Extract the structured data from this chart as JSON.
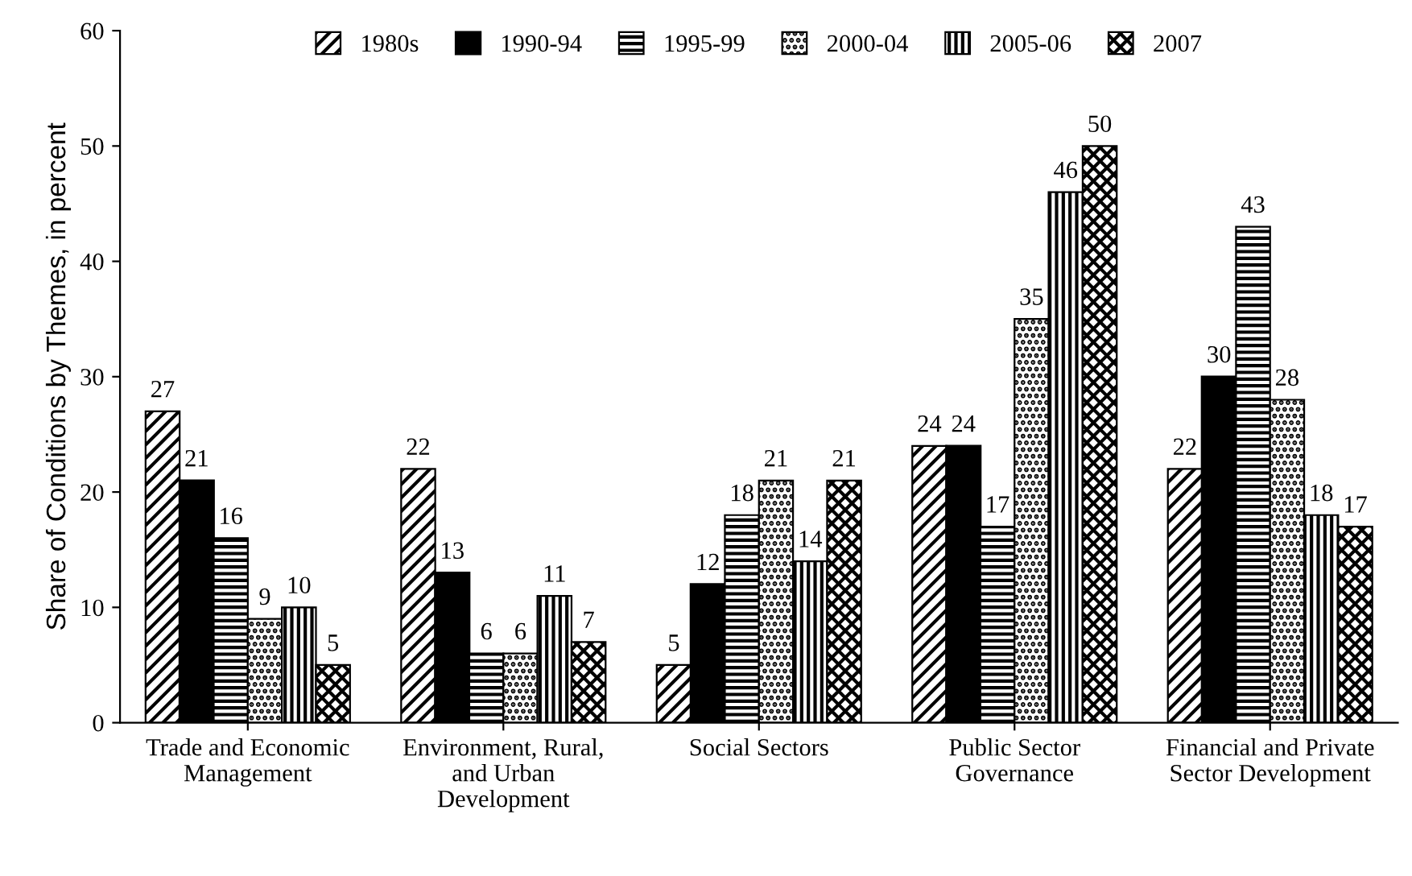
{
  "chart_data": {
    "type": "bar",
    "ylabel": "Share of Conditions by Themes, in percent",
    "categories": [
      "Trade and Economic\nManagement",
      "Environment, Rural,\nand Urban\nDevelopment",
      "Social Sectors",
      "Public Sector\nGovernance",
      "Financial and Private\nSector Development"
    ],
    "series": [
      {
        "name": "1980s",
        "color": "#000000",
        "values": [
          27,
          22,
          5,
          24,
          22
        ]
      },
      {
        "name": "1990-94",
        "color": "#000000",
        "values": [
          21,
          13,
          12,
          24,
          30
        ]
      },
      {
        "name": "1995-99",
        "color": "#000000",
        "values": [
          16,
          6,
          18,
          17,
          43
        ]
      },
      {
        "name": "2000-04",
        "color": "#000000",
        "values": [
          9,
          6,
          21,
          35,
          28
        ]
      },
      {
        "name": "2005-06",
        "color": "#000000",
        "values": [
          10,
          11,
          14,
          46,
          18
        ]
      },
      {
        "name": "2007",
        "color": "#000000",
        "values": [
          5,
          7,
          21,
          50,
          17
        ]
      }
    ],
    "ylim": [
      0,
      60
    ],
    "yticks": [
      0,
      10,
      20,
      30,
      40,
      50,
      60
    ],
    "data_labels": true,
    "legend": "top",
    "grid": false
  }
}
